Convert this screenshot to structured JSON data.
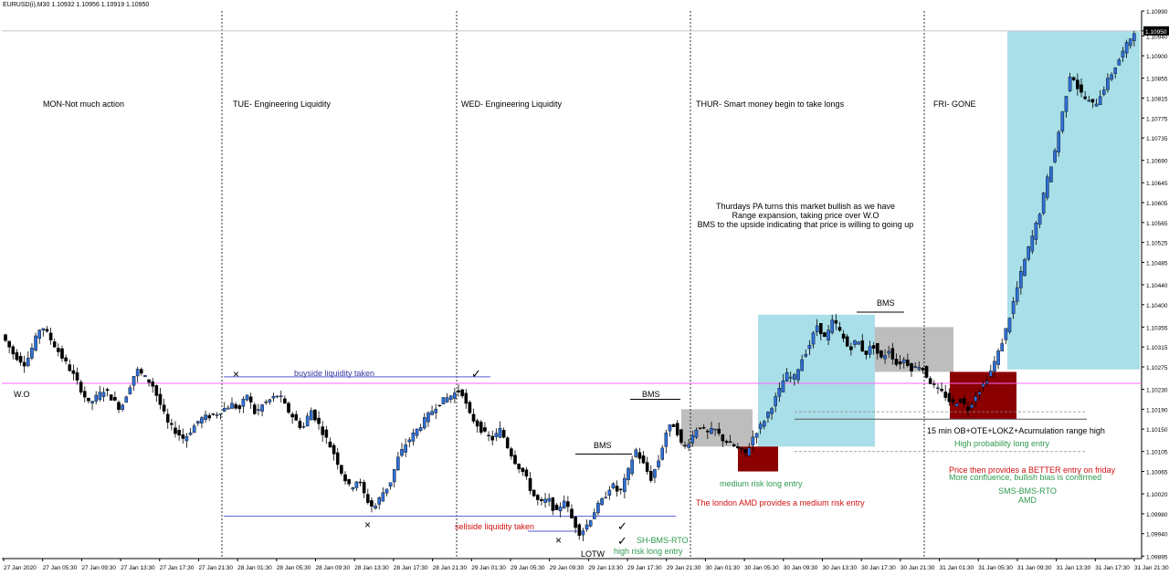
{
  "header": {
    "symbol_info": "EURUSD(i),M30  1.10932 1.10956 1.10919 1.10950"
  },
  "colors": {
    "bull_body": "#2f6fd6",
    "bear_body": "#000000",
    "wick": "#000000",
    "wo_line": "#ff66ff",
    "liquidity_line": "#5a5ad6",
    "blue_zone": "#a9dfe8",
    "grey_zone": "#bdbdbd",
    "red_zone": "#8b0000",
    "green_text": "#2e9a4e",
    "red_text": "#d01010",
    "purple_text": "#3a3aa0"
  },
  "chart_data": {
    "type": "candlestick",
    "title": "",
    "y_ticks": [
      "1.10990",
      "1.10950",
      "1.10940",
      "1.10900",
      "1.10855",
      "1.10815",
      "1.10775",
      "1.10735",
      "1.10690",
      "1.10645",
      "1.10605",
      "1.10565",
      "1.10525",
      "1.10485",
      "1.10440",
      "1.10400",
      "1.10355",
      "1.10315",
      "1.10275",
      "1.10230",
      "1.10190",
      "1.10150",
      "1.10105",
      "1.10065",
      "1.10020",
      "1.09980",
      "1.09940",
      "1.09895"
    ],
    "ylim": [
      1.0989,
      1.1099
    ],
    "current_price": "1.10950",
    "x_ticks": [
      "27 Jan 2020",
      "27 Jan 05:30",
      "27 Jan 09:30",
      "27 Jan 13:30",
      "27 Jan 17:30",
      "27 Jan 21:30",
      "28 Jan 01:30",
      "28 Jan 05:30",
      "28 Jan 09:30",
      "28 Jan 13:30",
      "28 Jan 17:30",
      "28 Jan 21:30",
      "29 Jan 01:30",
      "29 Jan 05:30",
      "29 Jan 09:30",
      "29 Jan 13:30",
      "29 Jan 17:30",
      "29 Jan 21:30",
      "30 Jan 01:30",
      "30 Jan 05:30",
      "30 Jan 09:30",
      "30 Jan 13:30",
      "30 Jan 17:30",
      "30 Jan 21:30",
      "31 Jan 01:30",
      "31 Jan 05:30",
      "31 Jan 09:30",
      "31 Jan 13:30",
      "31 Jan 17:30",
      "31 Jan 21:30"
    ],
    "price_path": [
      [
        0,
        1.1034
      ],
      [
        3,
        1.103
      ],
      [
        6,
        1.1028
      ],
      [
        10,
        1.1036
      ],
      [
        14,
        1.1031
      ],
      [
        18,
        1.1026
      ],
      [
        22,
        1.102
      ],
      [
        26,
        1.1023
      ],
      [
        30,
        1.1019
      ],
      [
        34,
        1.1027
      ],
      [
        38,
        1.1024
      ],
      [
        42,
        1.1016
      ],
      [
        46,
        1.1013
      ],
      [
        50,
        1.1017
      ],
      [
        54,
        1.1018
      ],
      [
        58,
        1.102
      ],
      [
        60,
        1.1019
      ],
      [
        62,
        1.1022
      ],
      [
        64,
        1.1018
      ],
      [
        66,
        1.102
      ],
      [
        68,
        1.1021
      ],
      [
        70,
        1.1022
      ],
      [
        72,
        1.1019
      ],
      [
        74,
        1.1017
      ],
      [
        76,
        1.1015
      ],
      [
        78,
        1.1019
      ],
      [
        80,
        1.1016
      ],
      [
        82,
        1.1013
      ],
      [
        84,
        1.101
      ],
      [
        86,
        1.1006
      ],
      [
        88,
        1.1003
      ],
      [
        90,
        1.1005
      ],
      [
        92,
        1.1001
      ],
      [
        94,
        1.0999
      ],
      [
        96,
        1.1002
      ],
      [
        98,
        1.1004
      ],
      [
        100,
        1.1009
      ],
      [
        102,
        1.1012
      ],
      [
        104,
        1.1014
      ],
      [
        106,
        1.1016
      ],
      [
        108,
        1.1018
      ],
      [
        110,
        1.102
      ],
      [
        112,
        1.1021
      ],
      [
        114,
        1.1022
      ],
      [
        116,
        1.1023
      ],
      [
        118,
        1.1018
      ],
      [
        120,
        1.1016
      ],
      [
        122,
        1.1014
      ],
      [
        124,
        1.1013
      ],
      [
        126,
        1.1015
      ],
      [
        128,
        1.1011
      ],
      [
        130,
        1.1008
      ],
      [
        132,
        1.1006
      ],
      [
        134,
        1.1002
      ],
      [
        136,
        1.1
      ],
      [
        138,
        1.1001
      ],
      [
        140,
        1.0998
      ],
      [
        142,
        1.1001
      ],
      [
        144,
        1.0997
      ],
      [
        146,
        1.0994
      ],
      [
        148,
        1.0996
      ],
      [
        150,
        1.0999
      ],
      [
        152,
        1.1001
      ],
      [
        154,
        1.1004
      ],
      [
        156,
        1.1002
      ],
      [
        158,
        1.1006
      ],
      [
        160,
        1.1011
      ],
      [
        162,
        1.1008
      ],
      [
        164,
        1.1005
      ],
      [
        166,
        1.1009
      ],
      [
        168,
        1.1015
      ],
      [
        170,
        1.1016
      ],
      [
        172,
        1.1011
      ],
      [
        174,
        1.1013
      ],
      [
        176,
        1.1016
      ],
      [
        178,
        1.1014
      ],
      [
        180,
        1.1015
      ],
      [
        182,
        1.1013
      ],
      [
        184,
        1.1012
      ],
      [
        186,
        1.1011
      ],
      [
        188,
        1.101
      ],
      [
        190,
        1.1014
      ],
      [
        192,
        1.1016
      ],
      [
        194,
        1.1019
      ],
      [
        196,
        1.1022
      ],
      [
        198,
        1.1026
      ],
      [
        200,
        1.1025
      ],
      [
        202,
        1.1029
      ],
      [
        204,
        1.1032
      ],
      [
        206,
        1.1036
      ],
      [
        208,
        1.1033
      ],
      [
        210,
        1.1037
      ],
      [
        212,
        1.1034
      ],
      [
        214,
        1.1031
      ],
      [
        216,
        1.1033
      ],
      [
        218,
        1.103
      ],
      [
        220,
        1.1032
      ],
      [
        222,
        1.1029
      ],
      [
        224,
        1.1031
      ],
      [
        226,
        1.1028
      ],
      [
        228,
        1.1029
      ],
      [
        230,
        1.1027
      ],
      [
        232,
        1.1028
      ],
      [
        234,
        1.1025
      ],
      [
        236,
        1.1023
      ],
      [
        238,
        1.1022
      ],
      [
        240,
        1.102
      ],
      [
        242,
        1.1021
      ],
      [
        244,
        1.1019
      ],
      [
        246,
        1.1022
      ],
      [
        248,
        1.1024
      ],
      [
        250,
        1.1027
      ],
      [
        252,
        1.1031
      ],
      [
        254,
        1.1036
      ],
      [
        256,
        1.1042
      ],
      [
        258,
        1.1048
      ],
      [
        260,
        1.1053
      ],
      [
        262,
        1.1058
      ],
      [
        264,
        1.1065
      ],
      [
        266,
        1.1071
      ],
      [
        268,
        1.1079
      ],
      [
        270,
        1.1087
      ],
      [
        272,
        1.1083
      ],
      [
        274,
        1.1081
      ],
      [
        276,
        1.108
      ],
      [
        278,
        1.1083
      ],
      [
        280,
        1.1086
      ],
      [
        282,
        1.1089
      ],
      [
        284,
        1.1092
      ],
      [
        286,
        1.1095
      ]
    ],
    "days": [
      {
        "name": "MON-Not much action"
      },
      {
        "name": "TUE- Engineering Liquidity"
      },
      {
        "name": "WED- Engineering Liquidity"
      },
      {
        "name": "THUR- Smart money begin to take longs"
      },
      {
        "name": "FRI- GONE"
      }
    ],
    "annotations": {
      "wo": "W.O",
      "buyside": "buyside liquidity taken",
      "sellside": "sellside liquidity taken",
      "bms": "BMS",
      "lotw": "LOTW",
      "x_mark": "×",
      "check_mark": "✓",
      "sh_bms_rto": "SH-BMS-RTO",
      "high_risk": "high risk long entry",
      "medium_risk": "medium risk long entry",
      "london_amd": "The london AMD provides a medium risk entry",
      "thursday_note_1": "Thurdays PA turns this market bullish as we have",
      "thursday_note_2": "Range expansion, taking price over W.O",
      "thursday_note_3": "BMS to the upside indicating that price is willing to going up",
      "ob_note": "15 min OB+OTE+LOKZ+Acumulation range high",
      "high_prob": "High probability long entry",
      "better_entry": "Price then provides a BETTER entry on friday",
      "confluence": "More confluence, bullish bias is confirmed",
      "sms_bms_rto": "SMS-BMS-RTO",
      "amd": "AMD"
    }
  }
}
